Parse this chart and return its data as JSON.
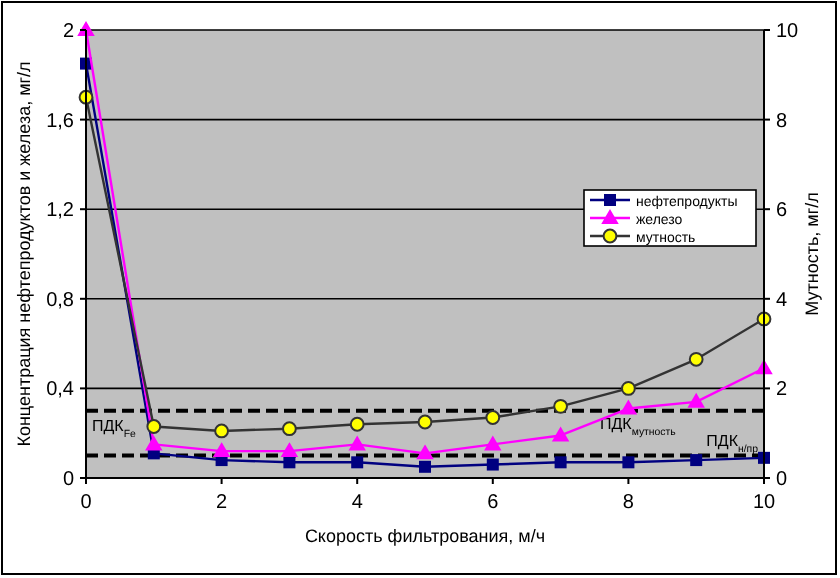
{
  "chart_data": {
    "type": "line",
    "xlabel": "Скорость фильтрования, м/ч",
    "ylabel": "Концентрация нефтепродуктов и железа, мг/л",
    "y2label": "Мутность, мг/л",
    "x": [
      0,
      1,
      2,
      3,
      4,
      5,
      6,
      7,
      8,
      9,
      10
    ],
    "series": [
      {
        "name": "нефтепродукты",
        "color": "#000080",
        "marker": "square",
        "values": [
          1.85,
          0.11,
          0.08,
          0.07,
          0.07,
          0.05,
          0.06,
          0.07,
          0.07,
          0.08,
          0.09
        ]
      },
      {
        "name": "железо",
        "color": "#ff00ff",
        "marker": "triangle",
        "values": [
          2.0,
          0.15,
          0.12,
          0.12,
          0.15,
          0.11,
          0.15,
          0.19,
          0.31,
          0.34,
          0.49
        ]
      },
      {
        "name": "мутность",
        "color": "#333333",
        "marker": "circle",
        "axis": "y2",
        "colors": [
          "#ffff00",
          "#ffff00",
          "#ffff00",
          "#ffff00",
          "#ffff00",
          "#ffff00",
          "#ffff00",
          "#ffff00",
          "#ffff00",
          "#ffff00",
          "#ffff00"
        ],
        "values": [
          8.5,
          1.15,
          1.05,
          1.1,
          1.2,
          1.25,
          1.35,
          1.6,
          2.0,
          2.65,
          3.55
        ]
      }
    ],
    "xlim": [
      0,
      10
    ],
    "xticks": [
      0,
      2,
      4,
      6,
      8,
      10
    ],
    "ylim": [
      0,
      2
    ],
    "yticks": [
      0,
      {
        "value": 0.4,
        "label": "0,4"
      },
      {
        "value": 0.8,
        "label": "0,8"
      },
      {
        "value": 1.2,
        "label": "1,2"
      },
      {
        "value": 1.6,
        "label": "1,6"
      },
      2
    ],
    "y2lim": [
      0,
      10
    ],
    "y2ticks": [
      0,
      2,
      4,
      6,
      8,
      10
    ],
    "ref_lines": [
      {
        "axis": "y2",
        "value": 1.5,
        "label": "ПДК$_{мутность}$",
        "color": "#000000",
        "line_style": "dashed"
      },
      {
        "axis": "y",
        "value": 0.1,
        "label": "ПДК$_{н/пр}$",
        "color": "#000000",
        "line_style": "dashed"
      }
    ],
    "annotations": [
      {
        "text": "ПДК$_{Fe}$",
        "x": 0,
        "y": 0.3
      }
    ],
    "grid": "y",
    "legend": "right"
  }
}
